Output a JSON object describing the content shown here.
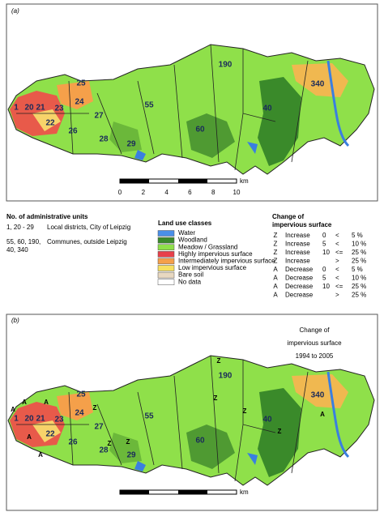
{
  "panels": [
    {
      "label": "(a)",
      "districts": [
        "1",
        "20",
        "21",
        "23",
        "22",
        "24",
        "25",
        "26",
        "27",
        "28",
        "29",
        "55",
        "60",
        "190",
        "40",
        "340"
      ],
      "scale": {
        "ticks": [
          0,
          2,
          4,
          6,
          8,
          10
        ],
        "unit": "km"
      }
    },
    {
      "label": "(b)",
      "title": [
        "Change of",
        "impervious surface",
        "1994 to 2005"
      ],
      "districts": [
        "1",
        "20",
        "21",
        "23",
        "22",
        "24",
        "25",
        "26",
        "27",
        "28",
        "29",
        "55",
        "60",
        "190",
        "40",
        "340"
      ],
      "change_symbols": [
        "A",
        "A",
        "A",
        "A",
        "A",
        "Z",
        "Z",
        "Z",
        "Z",
        "Z",
        "Z",
        "Z",
        "A"
      ],
      "scale": {
        "unit": "km"
      }
    }
  ],
  "legend": {
    "units": {
      "title": "No. of administrative units",
      "rows": [
        [
          "1, 20 - 29",
          "Local districts, City of Leipzig"
        ],
        [
          "55, 60, 190,",
          "Communes, outside Leipzig"
        ],
        [
          "40, 340"
        ]
      ]
    },
    "land_use": {
      "title": "Land use classes",
      "items": [
        "Water",
        "Woodland",
        "Meadow / Grassland",
        "Highly impervious surface",
        "Intermediately impervious surface",
        "Low impervious surface",
        "Bare soil",
        "No data"
      ]
    },
    "change": {
      "title": [
        "Change of",
        "impervious surface"
      ],
      "rows": [
        {
          "symbol": "Z",
          "label": "Increase",
          "condition": [
            "0",
            "<",
            "5 %"
          ]
        },
        {
          "symbol": "Z",
          "label": "Increase",
          "condition": [
            "5",
            "<",
            "10 %"
          ]
        },
        {
          "symbol": "Z",
          "label": "Increase",
          "condition": [
            "10",
            "<=",
            "25 %"
          ]
        },
        {
          "symbol": "Z",
          "label": "Increase",
          "condition": [
            ">",
            "25 %"
          ]
        },
        {
          "symbol": "A",
          "label": "Decrease",
          "condition": [
            "0",
            "<",
            "5 %"
          ]
        },
        {
          "symbol": "A",
          "label": "Decrease",
          "condition": [
            "5",
            "<",
            "10 %"
          ]
        },
        {
          "symbol": "A",
          "label": "Decrease",
          "condition": [
            "10",
            "<=",
            "25 %"
          ]
        },
        {
          "symbol": "A",
          "label": "Decrease",
          "condition": [
            ">",
            "25 %"
          ]
        }
      ]
    }
  }
}
